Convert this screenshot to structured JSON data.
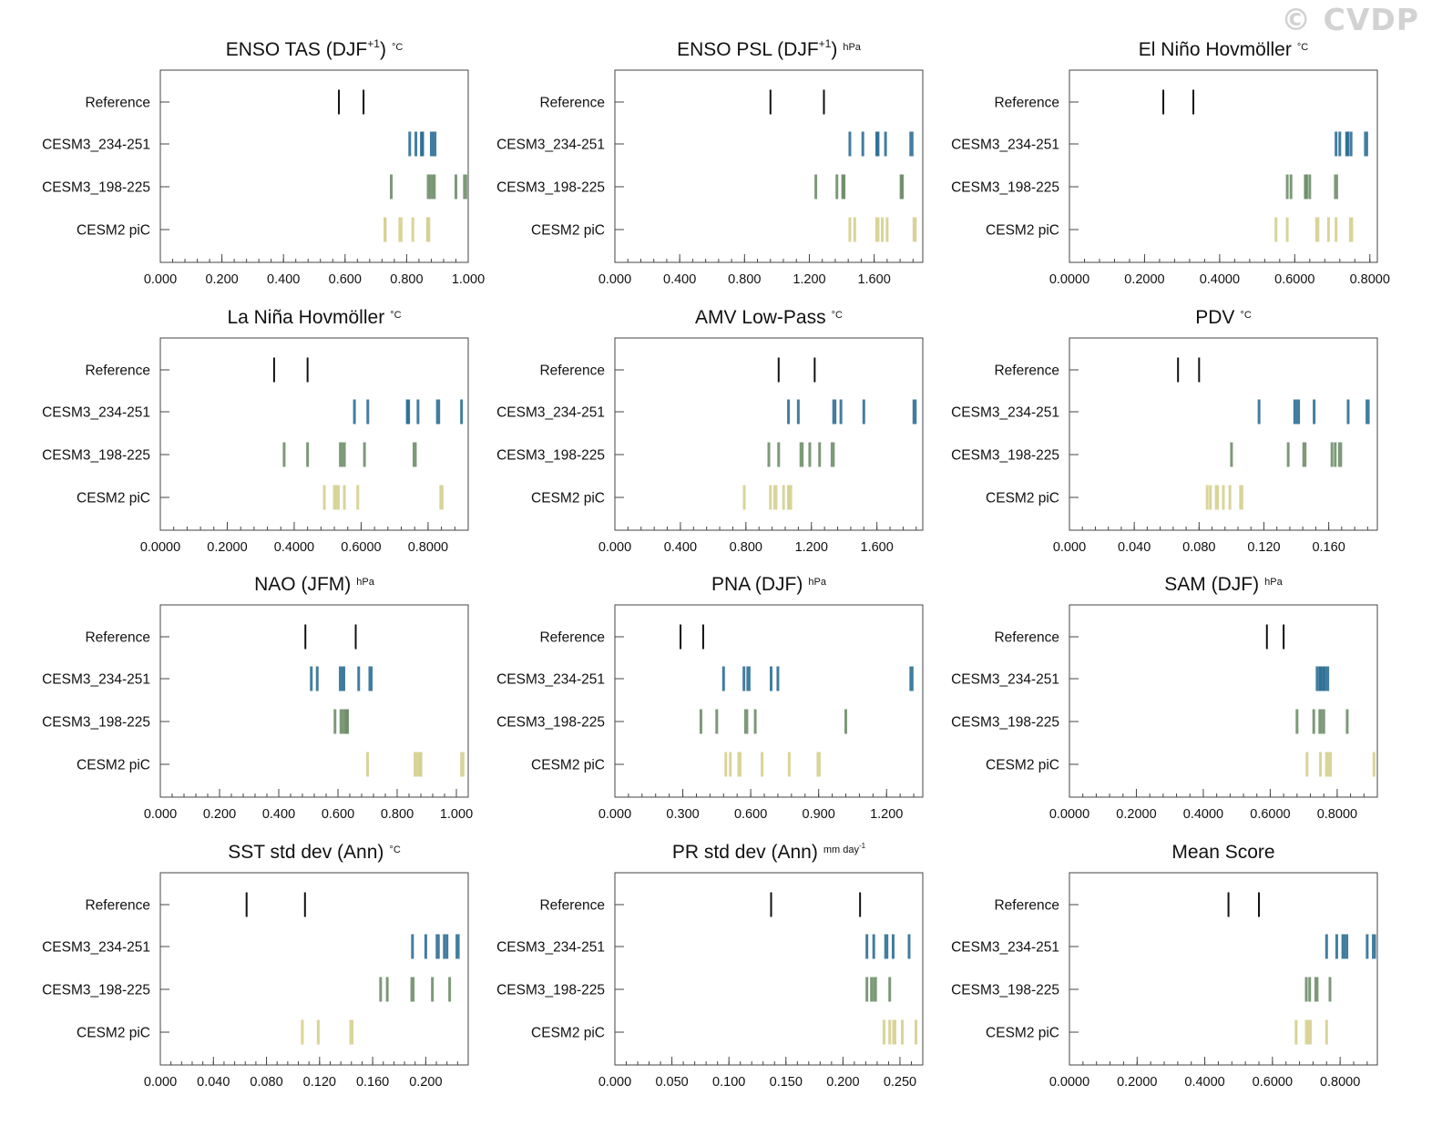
{
  "watermark": "© CVDP",
  "colors": {
    "Reference": "#111111",
    "CESM3_234-251": "#2e6f95",
    "CESM3_198-225": "#6f8e6a",
    "CESM2 piC": "#d5cf8e"
  },
  "chart_data": [
    {
      "type": "strip",
      "title": "ENSO TAS (DJF",
      "title_sup": "+1",
      "title_close": ")",
      "unit": "°C",
      "xlim": [
        0,
        1
      ],
      "xticks": [
        "0.000",
        "0.200",
        "0.400",
        "0.600",
        "0.800",
        "1.000"
      ],
      "rows": [
        {
          "label": "Reference",
          "values": [
            0.58,
            0.66
          ]
        },
        {
          "label": "CESM3_234-251",
          "values": [
            0.81,
            0.83,
            0.85,
            0.85,
            0.88,
            0.89
          ]
        },
        {
          "label": "CESM3_198-225",
          "values": [
            0.75,
            0.87,
            0.88,
            0.89,
            0.96,
            0.99
          ]
        },
        {
          "label": "CESM2 piC",
          "values": [
            0.73,
            0.73,
            0.78,
            0.82,
            0.87,
            0.87
          ]
        }
      ]
    },
    {
      "type": "strip",
      "title": "ENSO PSL (DJF",
      "title_sup": "+1",
      "title_close": ")",
      "unit": "hPa",
      "xlim": [
        0,
        1.9
      ],
      "xticks": [
        "0.000",
        "0.400",
        "0.800",
        "1.200",
        "1.600"
      ],
      "rows": [
        {
          "label": "Reference",
          "values": [
            0.96,
            1.29
          ]
        },
        {
          "label": "CESM3_234-251",
          "values": [
            1.45,
            1.53,
            1.62,
            1.62,
            1.67,
            1.83
          ]
        },
        {
          "label": "CESM3_198-225",
          "values": [
            1.24,
            1.37,
            1.41,
            1.41,
            1.77,
            1.77
          ]
        },
        {
          "label": "CESM2 piC",
          "values": [
            1.45,
            1.48,
            1.62,
            1.65,
            1.68,
            1.85
          ]
        }
      ]
    },
    {
      "type": "strip",
      "title": "El Niño Hovmöller",
      "title_sup": "",
      "title_close": "",
      "unit": "°C",
      "xlim": [
        0,
        0.82
      ],
      "xticks": [
        "0.0000",
        "0.2000",
        "0.4000",
        "0.6000",
        "0.8000"
      ],
      "rows": [
        {
          "label": "Reference",
          "values": [
            0.25,
            0.33
          ]
        },
        {
          "label": "CESM3_234-251",
          "values": [
            0.71,
            0.72,
            0.74,
            0.74,
            0.75,
            0.79
          ]
        },
        {
          "label": "CESM3_198-225",
          "values": [
            0.58,
            0.59,
            0.63,
            0.63,
            0.64,
            0.71
          ]
        },
        {
          "label": "CESM2 piC",
          "values": [
            0.55,
            0.58,
            0.66,
            0.69,
            0.71,
            0.75
          ]
        }
      ]
    },
    {
      "type": "strip",
      "title": "La Niña Hovmöller",
      "title_sup": "",
      "title_close": "",
      "unit": "°C",
      "xlim": [
        0,
        0.92
      ],
      "xticks": [
        "0.0000",
        "0.2000",
        "0.4000",
        "0.6000",
        "0.8000"
      ],
      "rows": [
        {
          "label": "Reference",
          "values": [
            0.34,
            0.44
          ]
        },
        {
          "label": "CESM3_234-251",
          "values": [
            0.58,
            0.62,
            0.74,
            0.74,
            0.77,
            0.83,
            0.9
          ]
        },
        {
          "label": "CESM3_198-225",
          "values": [
            0.37,
            0.44,
            0.54,
            0.55,
            0.61,
            0.76
          ]
        },
        {
          "label": "CESM2 piC",
          "values": [
            0.49,
            0.52,
            0.53,
            0.55,
            0.59,
            0.84
          ]
        }
      ]
    },
    {
      "type": "strip",
      "title": "AMV Low-Pass",
      "title_sup": "",
      "title_close": "",
      "unit": "°C",
      "xlim": [
        0,
        1.88
      ],
      "xticks": [
        "0.000",
        "0.400",
        "0.800",
        "1.200",
        "1.600"
      ],
      "rows": [
        {
          "label": "Reference",
          "values": [
            1.0,
            1.22
          ]
        },
        {
          "label": "CESM3_234-251",
          "values": [
            1.06,
            1.12,
            1.34,
            1.38,
            1.52,
            1.83
          ]
        },
        {
          "label": "CESM3_198-225",
          "values": [
            0.94,
            1.0,
            1.14,
            1.19,
            1.25,
            1.33
          ]
        },
        {
          "label": "CESM2 piC",
          "values": [
            0.79,
            0.95,
            0.98,
            1.03,
            1.06,
            1.07
          ]
        }
      ]
    },
    {
      "type": "strip",
      "title": "PDV",
      "title_sup": "",
      "title_close": "",
      "unit": "°C",
      "xlim": [
        0,
        0.19
      ],
      "xticks": [
        "0.000",
        "0.040",
        "0.080",
        "0.120",
        "0.160"
      ],
      "rows": [
        {
          "label": "Reference",
          "values": [
            0.067,
            0.08
          ]
        },
        {
          "label": "CESM3_234-251",
          "values": [
            0.117,
            0.139,
            0.141,
            0.151,
            0.172,
            0.184
          ]
        },
        {
          "label": "CESM3_198-225",
          "values": [
            0.1,
            0.135,
            0.145,
            0.162,
            0.164,
            0.167
          ]
        },
        {
          "label": "CESM2 piC",
          "values": [
            0.085,
            0.087,
            0.091,
            0.095,
            0.099,
            0.106
          ]
        }
      ]
    },
    {
      "type": "strip",
      "title": "NAO (JFM)",
      "title_sup": "",
      "title_close": "",
      "unit": "hPa",
      "xlim": [
        0,
        1.04
      ],
      "xticks": [
        "0.000",
        "0.200",
        "0.400",
        "0.600",
        "0.800",
        "1.000"
      ],
      "rows": [
        {
          "label": "Reference",
          "values": [
            0.49,
            0.66
          ]
        },
        {
          "label": "CESM3_234-251",
          "values": [
            0.51,
            0.53,
            0.61,
            0.62,
            0.67,
            0.71
          ]
        },
        {
          "label": "CESM3_198-225",
          "values": [
            0.59,
            0.61,
            0.62,
            0.63,
            0.63,
            0.63
          ]
        },
        {
          "label": "CESM2 piC",
          "values": [
            0.7,
            0.86,
            0.87,
            0.88,
            0.88,
            1.02
          ]
        }
      ]
    },
    {
      "type": "strip",
      "title": "PNA (DJF)",
      "title_sup": "",
      "title_close": "",
      "unit": "hPa",
      "xlim": [
        0,
        1.36
      ],
      "xticks": [
        "0.000",
        "0.300",
        "0.600",
        "0.900",
        "1.200"
      ],
      "rows": [
        {
          "label": "Reference",
          "values": [
            0.29,
            0.39
          ]
        },
        {
          "label": "CESM3_234-251",
          "values": [
            0.48,
            0.57,
            0.59,
            0.69,
            0.72,
            1.31
          ]
        },
        {
          "label": "CESM3_198-225",
          "values": [
            0.38,
            0.45,
            0.58,
            0.62,
            1.02
          ]
        },
        {
          "label": "CESM2 piC",
          "values": [
            0.49,
            0.51,
            0.55,
            0.65,
            0.77,
            0.9
          ]
        }
      ]
    },
    {
      "type": "strip",
      "title": "SAM (DJF)",
      "title_sup": "",
      "title_close": "",
      "unit": "hPa",
      "xlim": [
        0,
        0.92
      ],
      "xticks": [
        "0.0000",
        "0.2000",
        "0.4000",
        "0.6000",
        "0.8000"
      ],
      "rows": [
        {
          "label": "Reference",
          "values": [
            0.59,
            0.64
          ]
        },
        {
          "label": "CESM3_234-251",
          "values": [
            0.74,
            0.75,
            0.75,
            0.76,
            0.76,
            0.77
          ]
        },
        {
          "label": "CESM3_198-225",
          "values": [
            0.68,
            0.73,
            0.75,
            0.76,
            0.83
          ]
        },
        {
          "label": "CESM2 piC",
          "values": [
            0.71,
            0.75,
            0.77,
            0.78,
            0.91
          ]
        }
      ]
    },
    {
      "type": "strip",
      "title": "SST std dev (Ann)",
      "title_sup": "",
      "title_close": "",
      "unit": "°C",
      "xlim": [
        0,
        0.232
      ],
      "xticks": [
        "0.000",
        "0.040",
        "0.080",
        "0.120",
        "0.160",
        "0.200"
      ],
      "rows": [
        {
          "label": "Reference",
          "values": [
            0.065,
            0.109
          ]
        },
        {
          "label": "CESM3_234-251",
          "values": [
            0.19,
            0.2,
            0.209,
            0.214,
            0.216,
            0.224
          ]
        },
        {
          "label": "CESM3_198-225",
          "values": [
            0.166,
            0.171,
            0.19,
            0.205,
            0.218
          ]
        },
        {
          "label": "CESM2 piC",
          "values": [
            0.107,
            0.119,
            0.144
          ]
        }
      ]
    },
    {
      "type": "strip",
      "title": "PR std dev (Ann)",
      "title_sup": "",
      "title_close": "",
      "unit": "mm day",
      "unit_sup": "-1",
      "xlim": [
        0,
        0.27
      ],
      "xticks": [
        "0.000",
        "0.050",
        "0.100",
        "0.150",
        "0.200",
        "0.250"
      ],
      "rows": [
        {
          "label": "Reference",
          "values": [
            0.137,
            0.215
          ]
        },
        {
          "label": "CESM3_234-251",
          "values": [
            0.221,
            0.227,
            0.238,
            0.244,
            0.258
          ]
        },
        {
          "label": "CESM3_198-225",
          "values": [
            0.221,
            0.225,
            0.228,
            0.241
          ]
        },
        {
          "label": "CESM2 piC",
          "values": [
            0.236,
            0.241,
            0.245,
            0.252,
            0.264
          ]
        }
      ]
    },
    {
      "type": "strip",
      "title": "Mean Score",
      "title_sup": "",
      "title_close": "",
      "unit": "",
      "xlim": [
        0,
        0.91
      ],
      "xticks": [
        "0.0000",
        "0.2000",
        "0.4000",
        "0.6000",
        "0.8000"
      ],
      "rows": [
        {
          "label": "Reference",
          "values": [
            0.47,
            0.56
          ]
        },
        {
          "label": "CESM3_234-251",
          "values": [
            0.76,
            0.79,
            0.81,
            0.82,
            0.88,
            0.9
          ]
        },
        {
          "label": "CESM3_198-225",
          "values": [
            0.7,
            0.71,
            0.73,
            0.77
          ]
        },
        {
          "label": "CESM2 piC",
          "values": [
            0.67,
            0.7,
            0.71,
            0.76
          ]
        }
      ]
    }
  ]
}
